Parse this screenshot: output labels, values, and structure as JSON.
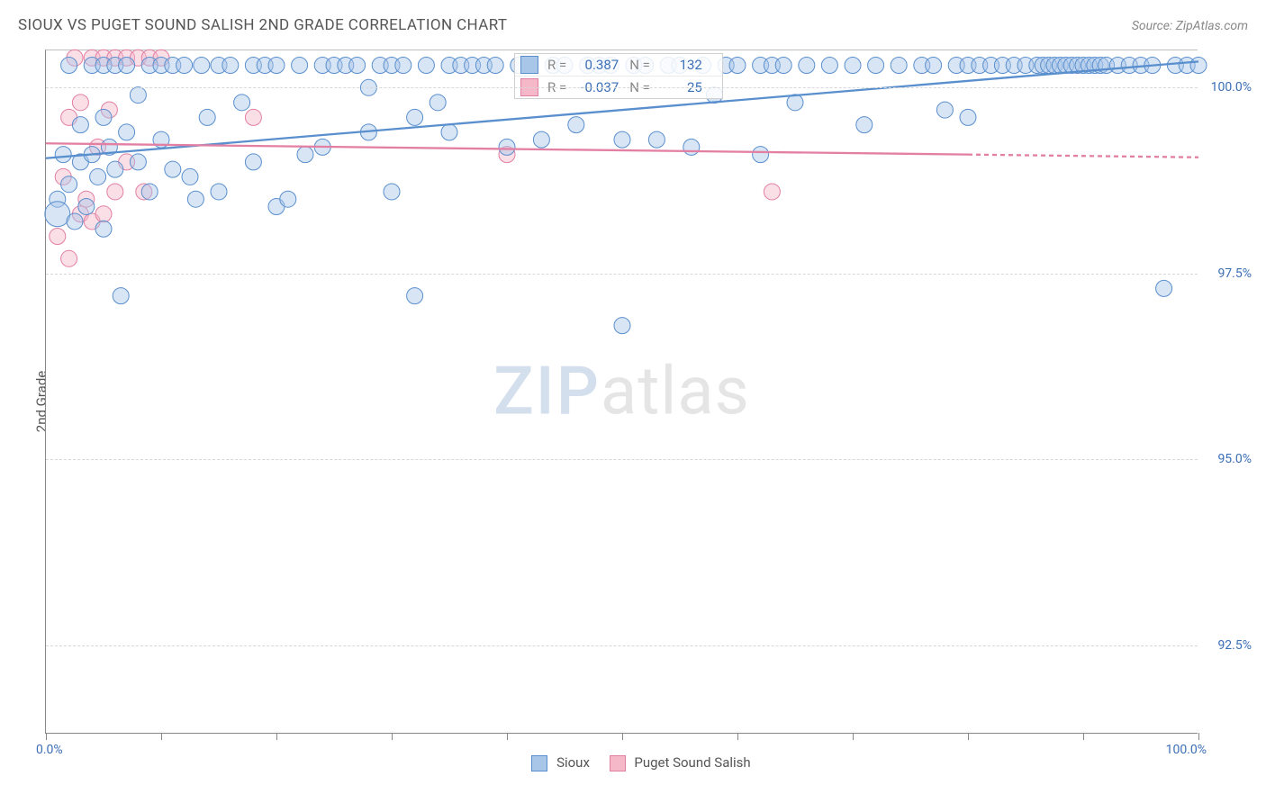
{
  "title": "SIOUX VS PUGET SOUND SALISH 2ND GRADE CORRELATION CHART",
  "source": "Source: ZipAtlas.com",
  "y_axis_title": "2nd Grade",
  "watermark": {
    "part1": "ZIP",
    "part2": "atlas"
  },
  "colors": {
    "series1_fill": "#a8c6e8",
    "series1_stroke": "#5a8fce",
    "series2_fill": "#f4b8c9",
    "series2_stroke": "#e37fa3",
    "axis_text": "#3b6fb6",
    "grid": "#d7d7d7",
    "title_text": "#555555"
  },
  "chart": {
    "type": "scatter",
    "xlim": [
      0,
      100
    ],
    "ylim": [
      91.3,
      100.5
    ],
    "x_ticks": [
      0,
      10,
      20,
      30,
      40,
      50,
      60,
      70,
      80,
      90,
      100
    ],
    "x_labels": {
      "min": "0.0%",
      "max": "100.0%"
    },
    "y_gridlines": [
      {
        "v": 100.0,
        "label": "100.0%"
      },
      {
        "v": 97.5,
        "label": "97.5%"
      },
      {
        "v": 95.0,
        "label": "95.0%"
      },
      {
        "v": 92.5,
        "label": "92.5%"
      }
    ],
    "marker_radius": 9,
    "marker_opacity": 0.45,
    "line_width": 2.3
  },
  "legend": {
    "series1": "Sioux",
    "series2": "Puget Sound Salish"
  },
  "stats": {
    "series1": {
      "R": "0.387",
      "N": "132"
    },
    "series2": {
      "R": "-0.037",
      "N": "25"
    }
  },
  "trend_lines": {
    "series1": {
      "x1": 0,
      "y1": 99.05,
      "x2": 100,
      "y2": 100.35
    },
    "series2": {
      "x1": 0,
      "y1": 99.25,
      "x2": 80,
      "y2": 99.1,
      "dash_to_x": 100
    }
  },
  "series1_points": [
    {
      "x": 1,
      "y": 98.5
    },
    {
      "x": 1,
      "y": 98.3,
      "r": 14
    },
    {
      "x": 1.5,
      "y": 99.1
    },
    {
      "x": 2,
      "y": 98.7
    },
    {
      "x": 2,
      "y": 100.3
    },
    {
      "x": 2.5,
      "y": 98.2
    },
    {
      "x": 3,
      "y": 99.0
    },
    {
      "x": 3,
      "y": 99.5
    },
    {
      "x": 3.5,
      "y": 98.4
    },
    {
      "x": 4,
      "y": 100.3
    },
    {
      "x": 4,
      "y": 99.1
    },
    {
      "x": 4.5,
      "y": 98.8
    },
    {
      "x": 5,
      "y": 100.3
    },
    {
      "x": 5,
      "y": 99.6
    },
    {
      "x": 5,
      "y": 98.1
    },
    {
      "x": 5.5,
      "y": 99.2
    },
    {
      "x": 6,
      "y": 100.3
    },
    {
      "x": 6,
      "y": 98.9
    },
    {
      "x": 6.5,
      "y": 97.2
    },
    {
      "x": 7,
      "y": 99.4
    },
    {
      "x": 7,
      "y": 100.3
    },
    {
      "x": 8,
      "y": 99.9
    },
    {
      "x": 8,
      "y": 99.0
    },
    {
      "x": 9,
      "y": 100.3
    },
    {
      "x": 9,
      "y": 98.6
    },
    {
      "x": 10,
      "y": 100.3
    },
    {
      "x": 10,
      "y": 99.3
    },
    {
      "x": 11,
      "y": 100.3
    },
    {
      "x": 11,
      "y": 98.9
    },
    {
      "x": 12,
      "y": 100.3
    },
    {
      "x": 12.5,
      "y": 98.8
    },
    {
      "x": 13,
      "y": 98.5
    },
    {
      "x": 13.5,
      "y": 100.3
    },
    {
      "x": 14,
      "y": 99.6
    },
    {
      "x": 15,
      "y": 100.3
    },
    {
      "x": 15,
      "y": 98.6
    },
    {
      "x": 16,
      "y": 100.3
    },
    {
      "x": 17,
      "y": 99.8
    },
    {
      "x": 18,
      "y": 100.3
    },
    {
      "x": 18,
      "y": 99.0
    },
    {
      "x": 19,
      "y": 100.3
    },
    {
      "x": 20,
      "y": 98.4
    },
    {
      "x": 20,
      "y": 100.3
    },
    {
      "x": 21,
      "y": 98.5
    },
    {
      "x": 22,
      "y": 100.3
    },
    {
      "x": 22.5,
      "y": 99.1
    },
    {
      "x": 24,
      "y": 100.3
    },
    {
      "x": 24,
      "y": 99.2
    },
    {
      "x": 25,
      "y": 100.3
    },
    {
      "x": 26,
      "y": 100.3
    },
    {
      "x": 27,
      "y": 100.3
    },
    {
      "x": 28,
      "y": 100.0
    },
    {
      "x": 28,
      "y": 99.4
    },
    {
      "x": 29,
      "y": 100.3
    },
    {
      "x": 30,
      "y": 98.6
    },
    {
      "x": 30,
      "y": 100.3
    },
    {
      "x": 31,
      "y": 100.3
    },
    {
      "x": 32,
      "y": 99.6
    },
    {
      "x": 32,
      "y": 97.2
    },
    {
      "x": 33,
      "y": 100.3
    },
    {
      "x": 34,
      "y": 99.8
    },
    {
      "x": 35,
      "y": 100.3
    },
    {
      "x": 35,
      "y": 99.4
    },
    {
      "x": 36,
      "y": 100.3
    },
    {
      "x": 37,
      "y": 100.3
    },
    {
      "x": 38,
      "y": 100.3
    },
    {
      "x": 39,
      "y": 100.3
    },
    {
      "x": 40,
      "y": 99.2
    },
    {
      "x": 41,
      "y": 100.3
    },
    {
      "x": 42,
      "y": 100.3
    },
    {
      "x": 43,
      "y": 99.3
    },
    {
      "x": 44,
      "y": 100.3
    },
    {
      "x": 45,
      "y": 100.3
    },
    {
      "x": 46,
      "y": 99.5
    },
    {
      "x": 47,
      "y": 100.3
    },
    {
      "x": 48,
      "y": 100.3
    },
    {
      "x": 49,
      "y": 100.3
    },
    {
      "x": 50,
      "y": 99.3
    },
    {
      "x": 50,
      "y": 96.8
    },
    {
      "x": 51,
      "y": 100.3
    },
    {
      "x": 52,
      "y": 100.3
    },
    {
      "x": 53,
      "y": 99.3
    },
    {
      "x": 54,
      "y": 100.3
    },
    {
      "x": 55,
      "y": 100.3
    },
    {
      "x": 56,
      "y": 99.2
    },
    {
      "x": 57,
      "y": 100.3
    },
    {
      "x": 58,
      "y": 99.9
    },
    {
      "x": 59,
      "y": 100.3
    },
    {
      "x": 60,
      "y": 100.3
    },
    {
      "x": 62,
      "y": 100.3
    },
    {
      "x": 62,
      "y": 99.1
    },
    {
      "x": 63,
      "y": 100.3
    },
    {
      "x": 64,
      "y": 100.3
    },
    {
      "x": 65,
      "y": 99.8
    },
    {
      "x": 66,
      "y": 100.3
    },
    {
      "x": 68,
      "y": 100.3
    },
    {
      "x": 70,
      "y": 100.3
    },
    {
      "x": 71,
      "y": 99.5
    },
    {
      "x": 72,
      "y": 100.3
    },
    {
      "x": 74,
      "y": 100.3
    },
    {
      "x": 76,
      "y": 100.3
    },
    {
      "x": 77,
      "y": 100.3
    },
    {
      "x": 78,
      "y": 99.7
    },
    {
      "x": 79,
      "y": 100.3
    },
    {
      "x": 80,
      "y": 100.3
    },
    {
      "x": 80,
      "y": 99.6
    },
    {
      "x": 81,
      "y": 100.3
    },
    {
      "x": 82,
      "y": 100.3
    },
    {
      "x": 83,
      "y": 100.3
    },
    {
      "x": 84,
      "y": 100.3
    },
    {
      "x": 85,
      "y": 100.3
    },
    {
      "x": 86,
      "y": 100.3
    },
    {
      "x": 86.5,
      "y": 100.3
    },
    {
      "x": 87,
      "y": 100.3
    },
    {
      "x": 87.5,
      "y": 100.3
    },
    {
      "x": 88,
      "y": 100.3
    },
    {
      "x": 88.5,
      "y": 100.3
    },
    {
      "x": 89,
      "y": 100.3
    },
    {
      "x": 89.5,
      "y": 100.3
    },
    {
      "x": 90,
      "y": 100.3
    },
    {
      "x": 90.5,
      "y": 100.3
    },
    {
      "x": 91,
      "y": 100.3
    },
    {
      "x": 91.5,
      "y": 100.3
    },
    {
      "x": 92,
      "y": 100.3
    },
    {
      "x": 93,
      "y": 100.3
    },
    {
      "x": 94,
      "y": 100.3
    },
    {
      "x": 95,
      "y": 100.3
    },
    {
      "x": 96,
      "y": 100.3
    },
    {
      "x": 97,
      "y": 97.3
    },
    {
      "x": 98,
      "y": 100.3
    },
    {
      "x": 99,
      "y": 100.3
    },
    {
      "x": 100,
      "y": 100.3
    }
  ],
  "series2_points": [
    {
      "x": 1,
      "y": 98.0
    },
    {
      "x": 1.5,
      "y": 98.8
    },
    {
      "x": 2,
      "y": 99.6
    },
    {
      "x": 2,
      "y": 97.7
    },
    {
      "x": 2.5,
      "y": 100.4
    },
    {
      "x": 3,
      "y": 98.3
    },
    {
      "x": 3,
      "y": 99.8
    },
    {
      "x": 3.5,
      "y": 98.5
    },
    {
      "x": 4,
      "y": 100.4
    },
    {
      "x": 4,
      "y": 98.2
    },
    {
      "x": 4.5,
      "y": 99.2
    },
    {
      "x": 5,
      "y": 100.4
    },
    {
      "x": 5,
      "y": 98.3
    },
    {
      "x": 5.5,
      "y": 99.7
    },
    {
      "x": 6,
      "y": 100.4
    },
    {
      "x": 6,
      "y": 98.6
    },
    {
      "x": 7,
      "y": 100.4
    },
    {
      "x": 7,
      "y": 99.0
    },
    {
      "x": 8,
      "y": 100.4
    },
    {
      "x": 8.5,
      "y": 98.6
    },
    {
      "x": 9,
      "y": 100.4
    },
    {
      "x": 10,
      "y": 100.4
    },
    {
      "x": 18,
      "y": 99.6
    },
    {
      "x": 40,
      "y": 99.1
    },
    {
      "x": 63,
      "y": 98.6
    }
  ]
}
